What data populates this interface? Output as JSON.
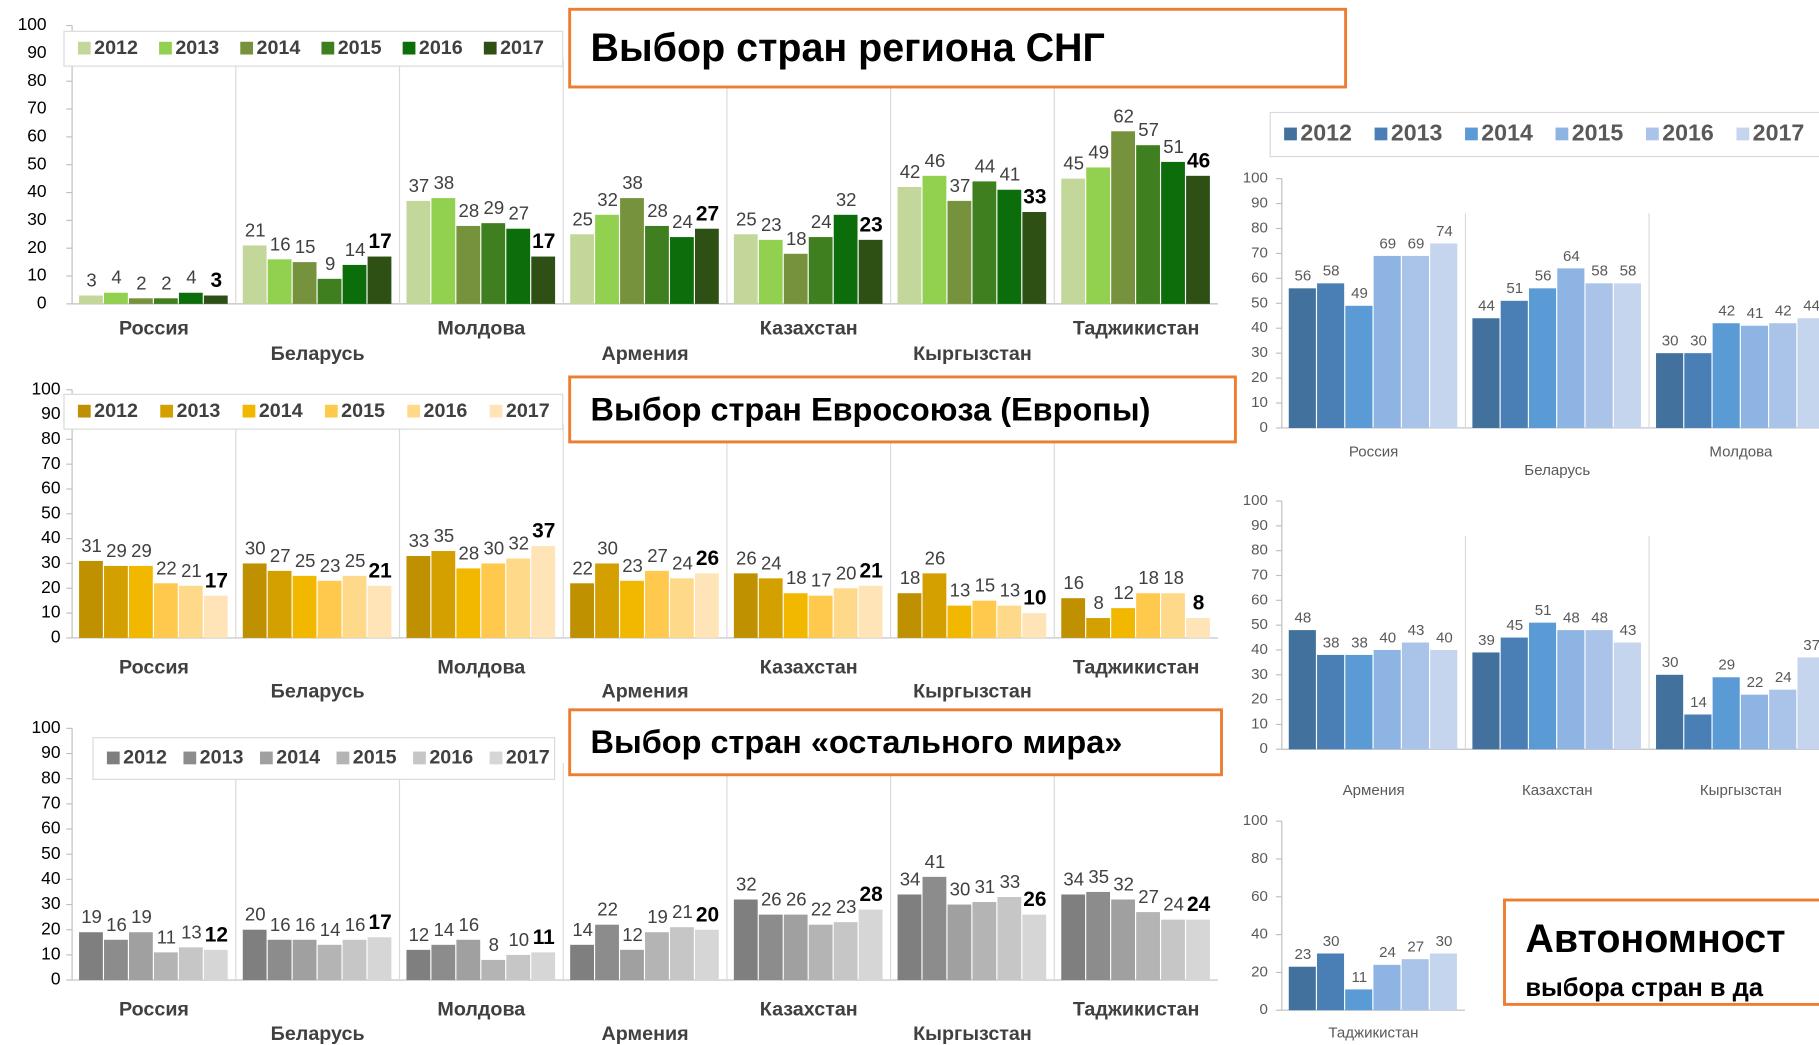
{
  "chart_data": [
    {
      "type": "bar",
      "legend": true,
      "categories": [
        "Россия",
        "Беларусь",
        "Молдова",
        "Армения",
        "Казахстан",
        "Кыргызстан",
        "Таджикистан"
      ],
      "ylim": [
        0,
        100
      ],
      "yticks": [
        0,
        10,
        20,
        30,
        40,
        50,
        60,
        70,
        80,
        90,
        100
      ],
      "series": [
        {
          "name": "2012",
          "color": "#c4d79b",
          "values": [
            3,
            21,
            37,
            25,
            25,
            42,
            45
          ]
        },
        {
          "name": "2013",
          "color": "#92d050",
          "values": [
            4,
            16,
            38,
            32,
            23,
            46,
            49
          ]
        },
        {
          "name": "2014",
          "color": "#76923c",
          "values": [
            2,
            15,
            28,
            38,
            18,
            37,
            62
          ]
        },
        {
          "name": "2015",
          "color": "#3f7f1f",
          "values": [
            2,
            9,
            29,
            28,
            24,
            44,
            57
          ]
        },
        {
          "name": "2016",
          "color": "#0b6e0b",
          "values": [
            4,
            14,
            27,
            24,
            32,
            41,
            51
          ]
        },
        {
          "name": "2017",
          "color": "#2e5014",
          "values": [
            3,
            17,
            17,
            27,
            23,
            33,
            46
          ]
        }
      ]
    },
    {
      "type": "bar",
      "legend": true,
      "categories": [
        "Россия",
        "Беларусь",
        "Молдова",
        "Армения",
        "Казахстан",
        "Кыргызстан",
        "Таджикистан"
      ],
      "ylim": [
        0,
        100
      ],
      "yticks": [
        0,
        10,
        20,
        30,
        40,
        50,
        60,
        70,
        80,
        90,
        100
      ],
      "series": [
        {
          "name": "2012",
          "color": "#bf9000",
          "values": [
            31,
            30,
            33,
            22,
            26,
            18,
            16
          ]
        },
        {
          "name": "2013",
          "color": "#d4a000",
          "values": [
            29,
            27,
            35,
            30,
            24,
            26,
            8
          ]
        },
        {
          "name": "2014",
          "color": "#f2b800",
          "values": [
            29,
            25,
            28,
            23,
            18,
            13,
            12
          ]
        },
        {
          "name": "2015",
          "color": "#ffc94d",
          "values": [
            22,
            23,
            30,
            27,
            17,
            15,
            18
          ]
        },
        {
          "name": "2016",
          "color": "#ffd98a",
          "values": [
            21,
            25,
            32,
            24,
            20,
            13,
            18
          ]
        },
        {
          "name": "2017",
          "color": "#ffe4b8",
          "values": [
            17,
            21,
            37,
            26,
            21,
            10,
            8
          ]
        }
      ]
    },
    {
      "type": "bar",
      "legend": true,
      "categories": [
        "Россия",
        "Беларусь",
        "Молдова",
        "Армения",
        "Казахстан",
        "Кыргызстан",
        "Таджикистан"
      ],
      "ylim": [
        0,
        100
      ],
      "yticks": [
        0,
        10,
        20,
        30,
        40,
        50,
        60,
        70,
        80,
        90,
        100
      ],
      "series": [
        {
          "name": "2012",
          "color": "#7f7f7f",
          "values": [
            19,
            20,
            12,
            14,
            32,
            34,
            34
          ]
        },
        {
          "name": "2013",
          "color": "#8c8c8c",
          "values": [
            16,
            16,
            14,
            22,
            26,
            41,
            35
          ]
        },
        {
          "name": "2014",
          "color": "#a0a0a0",
          "values": [
            19,
            16,
            16,
            12,
            26,
            30,
            32
          ]
        },
        {
          "name": "2015",
          "color": "#b4b4b4",
          "values": [
            11,
            14,
            8,
            19,
            22,
            31,
            27
          ]
        },
        {
          "name": "2016",
          "color": "#c6c6c6",
          "values": [
            13,
            16,
            10,
            21,
            23,
            33,
            24
          ]
        },
        {
          "name": "2017",
          "color": "#d6d6d6",
          "values": [
            12,
            17,
            11,
            20,
            28,
            26,
            24
          ]
        }
      ]
    },
    {
      "type": "bar",
      "legend": true,
      "categories": [
        "Россия",
        "Беларусь",
        "Молдова"
      ],
      "ylim": [
        0,
        100
      ],
      "yticks": [
        0,
        10,
        20,
        30,
        40,
        50,
        60,
        70,
        80,
        90,
        100
      ],
      "series": [
        {
          "name": "2012",
          "color": "#41719c",
          "values": [
            56,
            44,
            30
          ]
        },
        {
          "name": "2013",
          "color": "#4a7fb5",
          "values": [
            58,
            51,
            30
          ]
        },
        {
          "name": "2014",
          "color": "#5b9bd5",
          "values": [
            49,
            56,
            42
          ]
        },
        {
          "name": "2015",
          "color": "#8db4e2",
          "values": [
            69,
            64,
            41
          ]
        },
        {
          "name": "2016",
          "color": "#a9c4e8",
          "values": [
            69,
            58,
            42
          ]
        },
        {
          "name": "2017",
          "color": "#c5d5ee",
          "values": [
            74,
            58,
            44
          ]
        }
      ]
    },
    {
      "type": "bar",
      "legend": false,
      "categories": [
        "Армения",
        "Казахстан",
        "Кыргызстан"
      ],
      "ylim": [
        0,
        100
      ],
      "yticks": [
        0,
        10,
        20,
        30,
        40,
        50,
        60,
        70,
        80,
        90,
        100
      ],
      "series": [
        {
          "color": "#41719c",
          "values": [
            48,
            39,
            30
          ]
        },
        {
          "color": "#4a7fb5",
          "values": [
            38,
            45,
            14
          ]
        },
        {
          "color": "#5b9bd5",
          "values": [
            38,
            51,
            29
          ]
        },
        {
          "color": "#8db4e2",
          "values": [
            40,
            48,
            22
          ]
        },
        {
          "color": "#a9c4e8",
          "values": [
            43,
            48,
            24
          ]
        },
        {
          "color": "#c5d5ee",
          "values": [
            40,
            43,
            37
          ]
        }
      ]
    },
    {
      "type": "bar",
      "legend": false,
      "categories": [
        "Таджикистан"
      ],
      "ylim": [
        0,
        100
      ],
      "yticks": [
        0,
        20,
        40,
        60,
        80,
        100
      ],
      "series": [
        {
          "color": "#41719c",
          "values": [
            23
          ]
        },
        {
          "color": "#4a7fb5",
          "values": [
            30
          ]
        },
        {
          "color": "#5b9bd5",
          "values": [
            11
          ]
        },
        {
          "color": "#8db4e2",
          "values": [
            24
          ]
        },
        {
          "color": "#a9c4e8",
          "values": [
            27
          ]
        },
        {
          "color": "#c5d5ee",
          "values": [
            30
          ]
        }
      ]
    }
  ],
  "callouts": [
    {
      "text": "Выбор стран региона СНГ"
    },
    {
      "text": "Выбор стран Евросоюза (Европы)"
    },
    {
      "text": "Выбор стран «остального мира»"
    },
    {
      "text": "Автономност",
      "subtext": "выбора стран в да"
    }
  ]
}
